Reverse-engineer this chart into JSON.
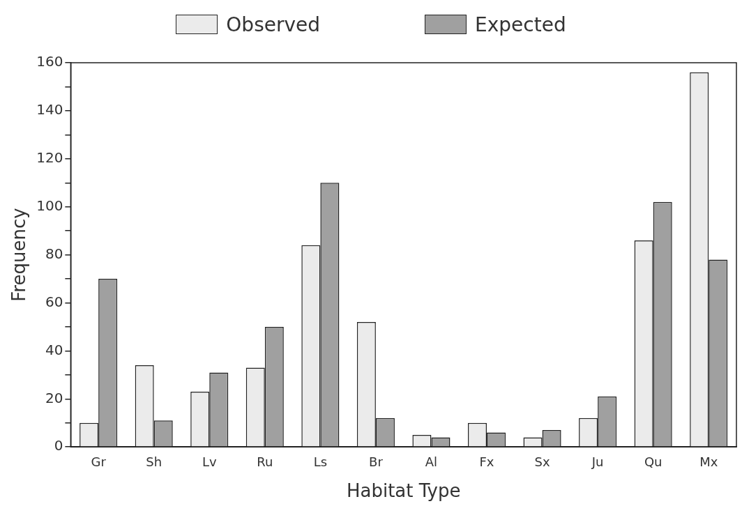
{
  "chart_data": {
    "type": "bar",
    "xlabel": "Habitat Type",
    "ylabel": "Frequency",
    "categories": [
      "Gr",
      "Sh",
      "Lv",
      "Ru",
      "Ls",
      "Br",
      "Al",
      "Fx",
      "Sx",
      "Ju",
      "Qu",
      "Mx"
    ],
    "series": [
      {
        "name": "Observed",
        "color": "#ebebeb",
        "values": [
          10,
          34,
          23,
          33,
          84,
          52,
          5,
          10,
          4,
          12,
          86,
          156
        ]
      },
      {
        "name": "Expected",
        "color": "#a0a0a0",
        "values": [
          70,
          11,
          31,
          50,
          110,
          12,
          4,
          6,
          7,
          21,
          102,
          78
        ]
      }
    ],
    "ylim": [
      0,
      160
    ],
    "yticks": [
      0,
      {
        "value": 10,
        "label": null
      },
      20,
      {
        "value": 30,
        "label": null
      },
      40,
      {
        "value": 50,
        "label": null
      },
      60,
      {
        "value": 70,
        "label": null
      },
      80,
      {
        "value": 90,
        "label": null
      },
      100,
      {
        "value": 110,
        "label": null
      },
      120,
      {
        "value": 130,
        "label": null
      },
      140,
      {
        "value": 150,
        "label": null
      },
      160
    ],
    "grid": false,
    "legend": "top"
  }
}
